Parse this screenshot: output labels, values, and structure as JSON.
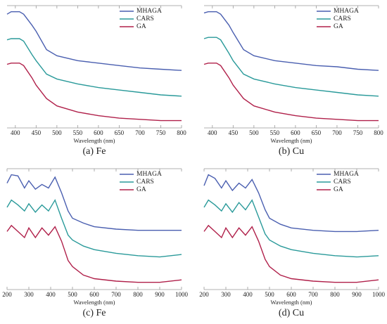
{
  "chart_data": [
    {
      "type": "line",
      "title": "(a) Fe",
      "xlabel": "Wavelength (nm)",
      "x": [
        380,
        390,
        410,
        420,
        440,
        450,
        475,
        500,
        550,
        600,
        650,
        700,
        750,
        800
      ],
      "series": [
        {
          "name": "MHAGA",
          "color": "#4a5fb0",
          "values": [
            93,
            95,
            95,
            93,
            84,
            79,
            64,
            59,
            55,
            53,
            51,
            49,
            48,
            47
          ]
        },
        {
          "name": "CARS",
          "color": "#2a9a9a",
          "values": [
            72,
            73,
            73,
            71,
            60,
            55,
            44,
            40,
            36,
            33,
            31,
            29,
            27,
            26
          ]
        },
        {
          "name": "GA",
          "color": "#b0204a",
          "values": [
            52,
            53,
            53,
            51,
            41,
            35,
            24,
            18,
            13,
            10,
            8,
            7,
            6,
            6
          ]
        }
      ],
      "xlim": [
        380,
        800
      ],
      "ylim": [
        0,
        100
      ],
      "xticks": [
        400,
        450,
        500,
        550,
        600,
        650,
        700,
        750,
        800
      ]
    },
    {
      "type": "line",
      "title": "(b) Cu",
      "xlabel": "Wavelength (nm)",
      "x": [
        380,
        390,
        410,
        420,
        440,
        450,
        475,
        500,
        550,
        600,
        650,
        700,
        750,
        800
      ],
      "series": [
        {
          "name": "MHAGA",
          "color": "#4a5fb0",
          "values": [
            94,
            95,
            95,
            93,
            84,
            78,
            64,
            59,
            55,
            53,
            51,
            50,
            48,
            47
          ]
        },
        {
          "name": "CARS",
          "color": "#2a9a9a",
          "values": [
            73,
            74,
            74,
            72,
            61,
            55,
            44,
            40,
            36,
            33,
            31,
            29,
            27,
            26
          ]
        },
        {
          "name": "GA",
          "color": "#b0204a",
          "values": [
            52,
            53,
            53,
            51,
            41,
            35,
            24,
            18,
            13,
            10,
            8,
            7,
            6,
            6
          ]
        }
      ],
      "xlim": [
        380,
        800
      ],
      "ylim": [
        0,
        100
      ],
      "xticks": [
        400,
        450,
        500,
        550,
        600,
        650,
        700,
        750,
        800
      ]
    },
    {
      "type": "line",
      "title": "(c) Fe",
      "xlabel": "Wavelength (nm)",
      "x": [
        200,
        220,
        250,
        280,
        300,
        330,
        360,
        390,
        420,
        450,
        480,
        500,
        550,
        600,
        700,
        800,
        900,
        1000
      ],
      "series": [
        {
          "name": "MHAGA",
          "color": "#4a5fb0",
          "values": [
            88,
            95,
            94,
            84,
            90,
            83,
            87,
            84,
            93,
            80,
            65,
            59,
            55,
            52,
            50,
            49,
            49,
            49
          ]
        },
        {
          "name": "CARS",
          "color": "#2a9a9a",
          "values": [
            68,
            74,
            70,
            65,
            71,
            64,
            70,
            65,
            74,
            59,
            45,
            41,
            36,
            33,
            30,
            28,
            27,
            29
          ]
        },
        {
          "name": "GA",
          "color": "#b0204a",
          "values": [
            48,
            53,
            48,
            43,
            51,
            43,
            51,
            45,
            52,
            40,
            24,
            19,
            12,
            9,
            7,
            6,
            6,
            8
          ]
        }
      ],
      "xlim": [
        200,
        1000
      ],
      "ylim": [
        0,
        100
      ],
      "xticks": [
        200,
        300,
        400,
        500,
        600,
        700,
        800,
        900,
        1000
      ]
    },
    {
      "type": "line",
      "title": "(d) Cu",
      "xlabel": "Wavelength (nm)",
      "x": [
        200,
        220,
        250,
        280,
        300,
        330,
        360,
        390,
        420,
        450,
        480,
        500,
        550,
        600,
        700,
        800,
        900,
        1000
      ],
      "series": [
        {
          "name": "MHAGA",
          "color": "#4a5fb0",
          "values": [
            86,
            95,
            92,
            84,
            90,
            82,
            88,
            84,
            91,
            80,
            66,
            59,
            54,
            51,
            49,
            48,
            48,
            49
          ]
        },
        {
          "name": "CARS",
          "color": "#2a9a9a",
          "values": [
            68,
            74,
            70,
            65,
            71,
            64,
            72,
            66,
            74,
            60,
            46,
            41,
            36,
            33,
            30,
            28,
            27,
            28
          ]
        },
        {
          "name": "GA",
          "color": "#b0204a",
          "values": [
            48,
            53,
            48,
            43,
            51,
            43,
            51,
            45,
            52,
            40,
            25,
            19,
            12,
            9,
            7,
            6,
            6,
            8
          ]
        }
      ],
      "xlim": [
        200,
        1000
      ],
      "ylim": [
        0,
        100
      ],
      "xticks": [
        200,
        300,
        400,
        500,
        600,
        700,
        800,
        900,
        1000
      ]
    }
  ]
}
